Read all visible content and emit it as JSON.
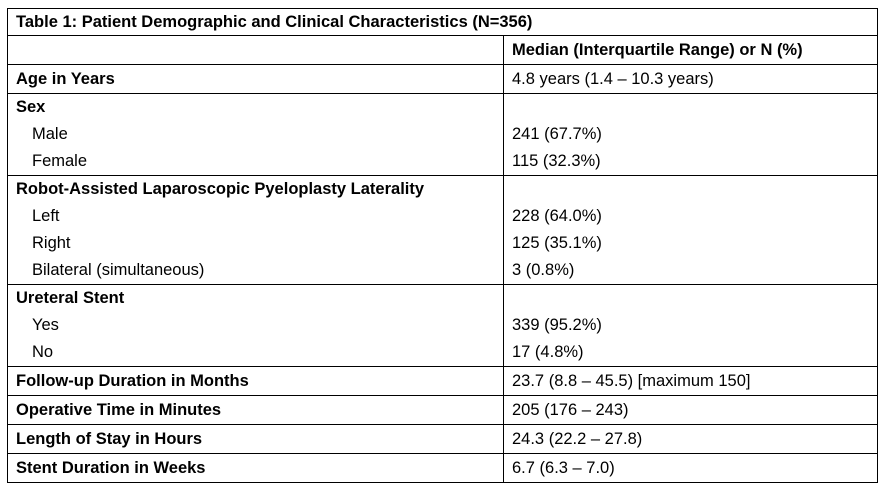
{
  "table": {
    "title": "Table 1: Patient Demographic and Clinical Characteristics (N=356)",
    "column_header": "Median (Interquartile Range) or N (%)",
    "rows": {
      "age": {
        "label": "Age in Years",
        "value": "4.8 years (1.4 – 10.3 years)"
      },
      "sex": {
        "label": "Sex",
        "items": [
          {
            "label": "Male",
            "value": "241 (67.7%)"
          },
          {
            "label": "Female",
            "value": "115 (32.3%)"
          }
        ]
      },
      "laterality": {
        "label": "Robot-Assisted Laparoscopic Pyeloplasty Laterality",
        "items": [
          {
            "label": "Left",
            "value": "228 (64.0%)"
          },
          {
            "label": "Right",
            "value": "125 (35.1%)"
          },
          {
            "label": "Bilateral (simultaneous)",
            "value": "3 (0.8%)"
          }
        ]
      },
      "stent": {
        "label": "Ureteral Stent",
        "items": [
          {
            "label": "Yes",
            "value": "339 (95.2%)"
          },
          {
            "label": "No",
            "value": "17 (4.8%)"
          }
        ]
      },
      "followup": {
        "label": "Follow-up Duration in Months",
        "value": "23.7 (8.8 – 45.5) [maximum 150]"
      },
      "operative": {
        "label": "Operative Time in Minutes",
        "value": "205 (176 – 243)"
      },
      "los": {
        "label": "Length of Stay in Hours",
        "value": "24.3 (22.2 – 27.8)"
      },
      "stent_duration": {
        "label": "Stent Duration in Weeks",
        "value": "6.7 (6.3 – 7.0)"
      }
    }
  }
}
